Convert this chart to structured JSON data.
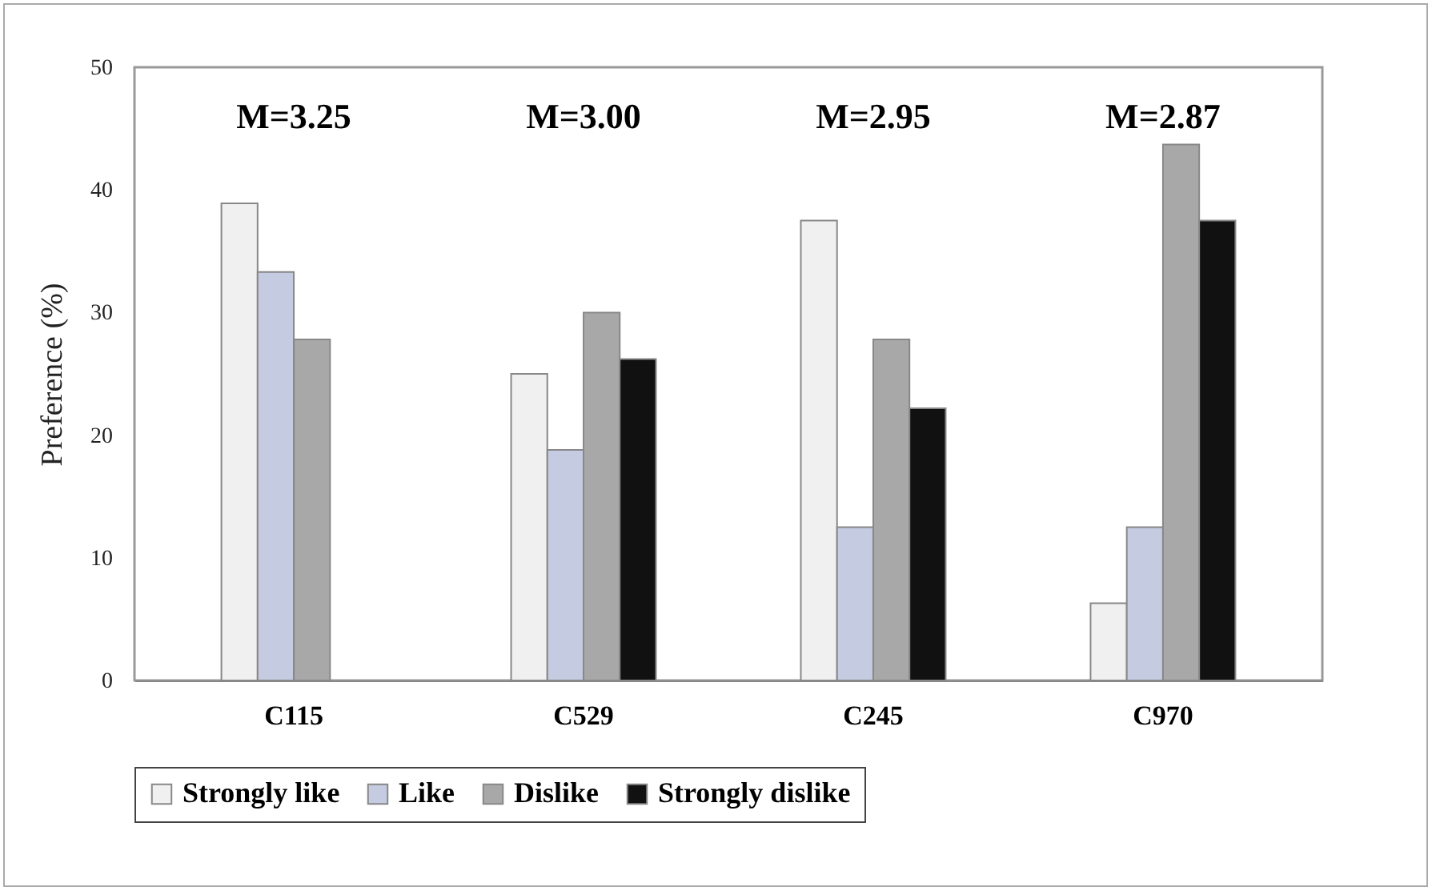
{
  "chart_data": {
    "type": "bar",
    "ylabel": "Preference (%)",
    "categories": [
      "C115",
      "C529",
      "C245",
      "C970"
    ],
    "series": [
      {
        "name": "Strongly like",
        "color": "#f0f0f0",
        "values": [
          38.9,
          25.0,
          37.5,
          6.3
        ]
      },
      {
        "name": "Like",
        "color": "#c5cbe0",
        "values": [
          33.3,
          18.8,
          12.5,
          12.5
        ]
      },
      {
        "name": "Dislike",
        "color": "#a8a8a8",
        "values": [
          27.8,
          30.0,
          27.8,
          43.7
        ]
      },
      {
        "name": "Strongly dislike",
        "color": "#111111",
        "values": [
          null,
          26.2,
          22.2,
          37.5
        ]
      }
    ],
    "ylim": [
      0,
      50
    ],
    "yticks": [
      0,
      10,
      20,
      30,
      40,
      50
    ],
    "grid": false,
    "legend": "bottom",
    "annotations": [
      "M=3.25",
      "M=3.00",
      "M=2.95",
      "M=2.87"
    ]
  }
}
